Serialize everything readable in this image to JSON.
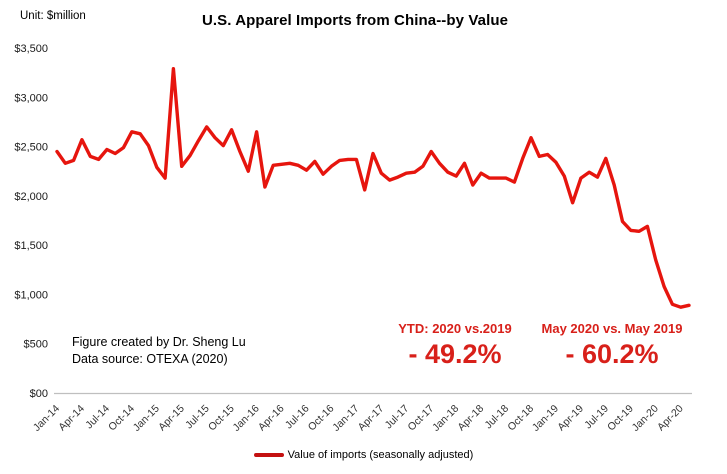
{
  "colors": {
    "accent_red": "#d8201a",
    "line_red": "#e6150e",
    "legend_red": "#c41111",
    "axis_gray": "#bfbfbf"
  },
  "chart_data": {
    "type": "line",
    "title": "U.S. Apparel Imports from China--by Value",
    "unit_label": "Unit: $million",
    "series_name": "Value of imports (seasonally adjusted)",
    "ylim": [
      0,
      3500
    ],
    "grid": false,
    "legend_position": "bottom-center",
    "y_tick_values": [
      0,
      500,
      1000,
      1500,
      2000,
      2500,
      3000,
      3500
    ],
    "y_tick_labels": [
      "$00",
      "$500",
      "$1,000",
      "$1,500",
      "$2,000",
      "$2,500",
      "$3,000",
      "$3,500"
    ],
    "x_tick_labels": [
      "Jan-14",
      "Apr-14",
      "Jul-14",
      "Oct-14",
      "Jan-15",
      "Apr-15",
      "Jul-15",
      "Oct-15",
      "Jan-16",
      "Apr-16",
      "Jul-16",
      "Oct-16",
      "Jan-17",
      "Apr-17",
      "Jul-17",
      "Oct-17",
      "Jan-18",
      "Apr-18",
      "Jul-18",
      "Oct-18",
      "Jan-19",
      "Apr-19",
      "Jul-19",
      "Oct-19",
      "Jan-20",
      "Apr-20"
    ],
    "x": [
      "Jan-14",
      "Feb-14",
      "Mar-14",
      "Apr-14",
      "May-14",
      "Jun-14",
      "Jul-14",
      "Aug-14",
      "Sep-14",
      "Oct-14",
      "Nov-14",
      "Dec-14",
      "Jan-15",
      "Feb-15",
      "Mar-15",
      "Apr-15",
      "May-15",
      "Jun-15",
      "Jul-15",
      "Aug-15",
      "Sep-15",
      "Oct-15",
      "Nov-15",
      "Dec-15",
      "Jan-16",
      "Feb-16",
      "Mar-16",
      "Apr-16",
      "May-16",
      "Jun-16",
      "Jul-16",
      "Aug-16",
      "Sep-16",
      "Oct-16",
      "Nov-16",
      "Dec-16",
      "Jan-17",
      "Feb-17",
      "Mar-17",
      "Apr-17",
      "May-17",
      "Jun-17",
      "Jul-17",
      "Aug-17",
      "Sep-17",
      "Oct-17",
      "Nov-17",
      "Dec-17",
      "Jan-18",
      "Feb-18",
      "Mar-18",
      "Apr-18",
      "May-18",
      "Jun-18",
      "Jul-18",
      "Aug-18",
      "Sep-18",
      "Oct-18",
      "Nov-18",
      "Dec-18",
      "Jan-19",
      "Feb-19",
      "Mar-19",
      "Apr-19",
      "May-19",
      "Jun-19",
      "Jul-19",
      "Aug-19",
      "Sep-19",
      "Oct-19",
      "Nov-19",
      "Dec-19",
      "Jan-20",
      "Feb-20",
      "Mar-20",
      "Apr-20",
      "May-20"
    ],
    "values": [
      2450,
      2330,
      2360,
      2570,
      2400,
      2370,
      2470,
      2430,
      2490,
      2650,
      2630,
      2510,
      2290,
      2180,
      3290,
      2300,
      2410,
      2560,
      2700,
      2590,
      2510,
      2670,
      2450,
      2250,
      2650,
      2090,
      2310,
      2320,
      2330,
      2310,
      2260,
      2350,
      2220,
      2300,
      2360,
      2370,
      2370,
      2060,
      2430,
      2230,
      2160,
      2190,
      2230,
      2240,
      2300,
      2450,
      2330,
      2240,
      2200,
      2330,
      2110,
      2230,
      2180,
      2180,
      2180,
      2140,
      2380,
      2590,
      2400,
      2420,
      2340,
      2200,
      1930,
      2180,
      2240,
      2190,
      2380,
      2110,
      1740,
      1650,
      1640,
      1690,
      1350,
      1080,
      900,
      870,
      890
    ],
    "annotations": [
      {
        "label": "YTD: 2020  vs.2019",
        "value": "- 49.2%"
      },
      {
        "label": "May 2020 vs. May 2019",
        "value": "- 60.2%"
      }
    ],
    "credit_line1": "Figure created by Dr. Sheng Lu",
    "credit_line2": "Data source: OTEXA (2020)"
  }
}
